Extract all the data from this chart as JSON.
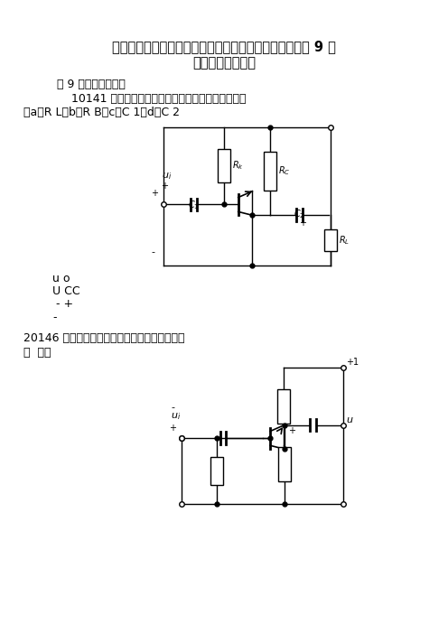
{
  "title_line1": "河北联合大学（原河北理工大学）电工学试题库及答案第 9 章",
  "title_line2": "基本放大电路习题",
  "section": "第 9 章基本放大电路",
  "q1_label": "    10141 如图示放大电路中接线有错误的元件是（）。",
  "q1_options": "（a）R L（b）R B（c）C 1（d）C 2",
  "label_uo": "u o",
  "label_ucc": "U CC",
  "label_mp": " - +",
  "label_m": "-",
  "q2_label": "20146 下列各电路中能实现交流电压放大的是图",
  "q2_paren": "（  ）。",
  "bg": "#ffffff",
  "text_color": "#000000"
}
